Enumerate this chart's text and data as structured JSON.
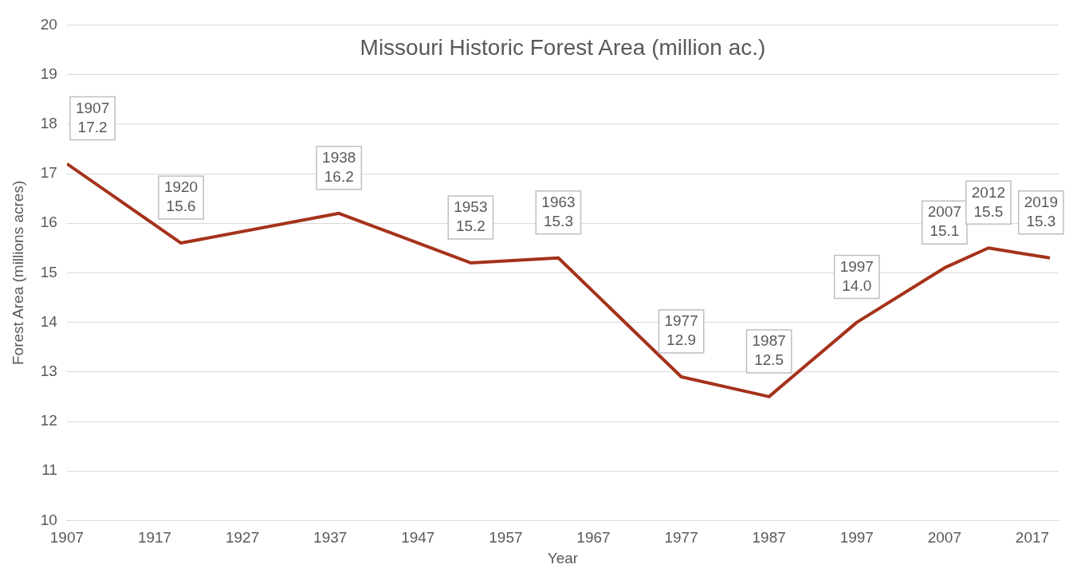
{
  "chart_data": {
    "type": "line",
    "title": "Missouri Historic Forest Area (million ac.)",
    "xlabel": "Year",
    "ylabel": "Forest Area (millions acres)",
    "x": [
      1907,
      1920,
      1938,
      1953,
      1963,
      1977,
      1987,
      1997,
      2007,
      2012,
      2019
    ],
    "series": [
      {
        "color": "#a5321b",
        "values": [
          17.2,
          15.6,
          16.2,
          15.2,
          15.3,
          12.9,
          12.5,
          14.0,
          15.1,
          15.5,
          15.3
        ],
        "value_labels": [
          "1907\n17.2",
          "1920\n15.6",
          "1938\n16.2",
          "1953\n15.2",
          "1963\n15.3",
          "1977\n12.9",
          "1987\n12.5",
          "1997\n14.0",
          "2007\n15.1",
          "2012\n15.5",
          "2019\n15.3"
        ]
      }
    ],
    "xlim": [
      1907,
      2020
    ],
    "xticks": [
      1907,
      1917,
      1927,
      1937,
      1947,
      1957,
      1967,
      1977,
      1987,
      1997,
      2007,
      2017
    ],
    "ylim": [
      10,
      20
    ],
    "yticks": [
      10,
      11,
      12,
      13,
      14,
      15,
      16,
      17,
      18,
      19,
      20
    ],
    "grid": "y",
    "legend": false,
    "marker": "none",
    "line_style": "solid"
  }
}
